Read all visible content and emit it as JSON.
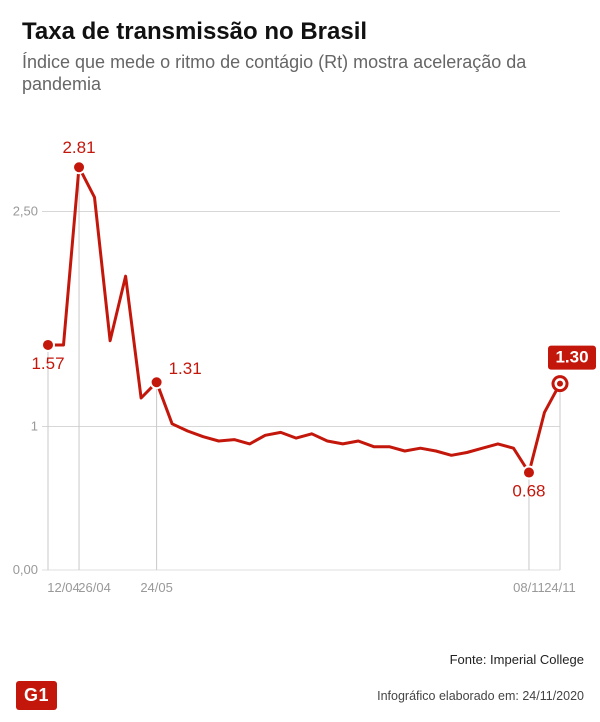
{
  "header": {
    "title": "Taxa de transmissão no Brasil",
    "subtitle": "Índice que mede o ritmo de contágio (Rt) mostra aceleração da pandemia"
  },
  "chart": {
    "type": "line",
    "background_color": "#ffffff",
    "line_color": "#c4170c",
    "line_width": 3,
    "marker_fill": "#c4170c",
    "marker_stroke": "#ffffff",
    "marker_radius": 6,
    "final_marker_fill": "#ffffff",
    "final_marker_stroke": "#c4170c",
    "final_marker_inner": "#c4170c",
    "grid_color": "#bfbfbf",
    "grid_width": 0.6,
    "drop_line_color": "#c9c9c9",
    "drop_line_width": 1,
    "ylim": [
      0.0,
      3.0
    ],
    "yticks": [
      0.0,
      1.0,
      2.5
    ],
    "ytick_labels": [
      "0,00",
      "1",
      "2,50"
    ],
    "xtick_indices": [
      1,
      3,
      7,
      31,
      33
    ],
    "xtick_labels": [
      "12/04",
      "26/04",
      "24/05",
      "08/11",
      "24/11"
    ],
    "axis_label_color": "#999999",
    "point_label_color": "#c4170c",
    "badge_bg": "#c4170c",
    "badge_text_color": "#ffffff",
    "values": [
      1.57,
      1.57,
      2.81,
      2.6,
      1.6,
      2.05,
      1.2,
      1.31,
      1.02,
      0.97,
      0.93,
      0.9,
      0.91,
      0.88,
      0.94,
      0.96,
      0.92,
      0.95,
      0.9,
      0.88,
      0.9,
      0.86,
      0.86,
      0.83,
      0.85,
      0.83,
      0.8,
      0.82,
      0.85,
      0.88,
      0.85,
      0.68,
      1.1,
      1.3
    ],
    "highlight_points": [
      {
        "i": 0,
        "label": "1.57",
        "pos": "below"
      },
      {
        "i": 2,
        "label": "2.81",
        "pos": "above"
      },
      {
        "i": 7,
        "label": "1.31",
        "pos": "right"
      },
      {
        "i": 31,
        "label": "0.68",
        "pos": "below"
      },
      {
        "i": 33,
        "label": "1.30",
        "pos": "badge"
      }
    ]
  },
  "footer": {
    "source": "Fonte: Imperial College",
    "logo": "G1",
    "credit": "Infográfico elaborado em: 24/11/2020"
  }
}
